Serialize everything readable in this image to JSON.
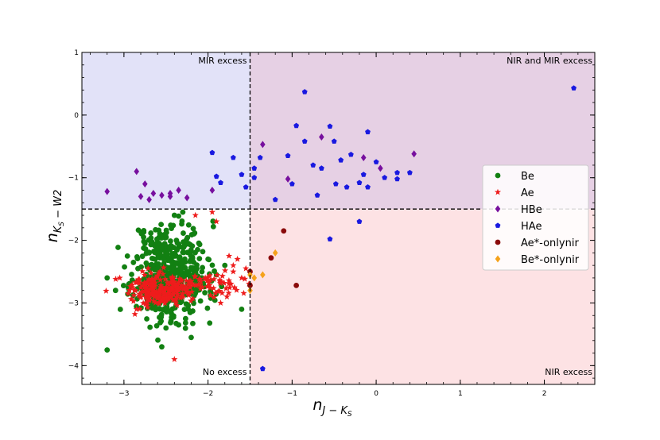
{
  "chart_data": {
    "type": "scatter",
    "xlabel_main": "n",
    "xlabel_sub": "J − K",
    "xlabel_subsub": "S",
    "ylabel_main": "n",
    "ylabel_sub": "K",
    "ylabel_subsub": "S",
    "ylabel_tail": " − W2",
    "xlim": [
      -3.5,
      2.6
    ],
    "ylim": [
      -4.3,
      1.0
    ],
    "xticks": [
      -3,
      -2,
      -1,
      0,
      1,
      2
    ],
    "yticks": [
      1,
      0,
      -1,
      -2,
      -3,
      -4
    ],
    "thresholds": {
      "x": -1.5,
      "y": -1.5
    },
    "regions": [
      {
        "name": "mir",
        "label": "MIR excess",
        "color": "#e2e2f8"
      },
      {
        "name": "nirmir",
        "label": "NIR and MIR excess",
        "color": "#e6d0e4"
      },
      {
        "name": "noexcess",
        "label": "No excess",
        "color": "#ffffff"
      },
      {
        "name": "nir",
        "label": "NIR excess",
        "color": "#fde2e4"
      }
    ],
    "series": [
      {
        "name": "Be",
        "color": "#128012",
        "marker": "circle",
        "clusters": [
          {
            "cx": -2.45,
            "cy": -2.45,
            "sx": 0.22,
            "sy": 0.38,
            "n": 420,
            "seed": 11
          },
          {
            "cx": -2.5,
            "cy": -2.85,
            "sx": 0.22,
            "sy": 0.18,
            "n": 120,
            "seed": 29
          }
        ],
        "points": [
          [
            -3.2,
            -3.75
          ],
          [
            -2.55,
            -3.7
          ],
          [
            -2.2,
            -3.55
          ],
          [
            -2.5,
            -3.4
          ],
          [
            -3.2,
            -2.6
          ],
          [
            -3.1,
            -2.8
          ],
          [
            -2.35,
            -3.35
          ],
          [
            -2.3,
            -1.55
          ],
          [
            -2.4,
            -1.6
          ],
          [
            -1.6,
            -3.1
          ],
          [
            -1.9,
            -2.55
          ],
          [
            -1.8,
            -2.4
          ],
          [
            -2.7,
            -2.2
          ],
          [
            -2.75,
            -2.05
          ],
          [
            -2.0,
            -2.3
          ]
        ]
      },
      {
        "name": "Ae",
        "color": "#ee1c1c",
        "marker": "star",
        "clusters": [
          {
            "cx": -2.55,
            "cy": -2.8,
            "sx": 0.2,
            "sy": 0.12,
            "n": 220,
            "seed": 47
          },
          {
            "cx": -2.0,
            "cy": -2.7,
            "sx": 0.3,
            "sy": 0.1,
            "n": 70,
            "seed": 53
          }
        ],
        "points": [
          [
            -2.4,
            -3.9
          ],
          [
            -2.15,
            -1.6
          ],
          [
            -1.9,
            -1.7
          ],
          [
            -1.95,
            -1.55
          ],
          [
            -1.75,
            -2.25
          ],
          [
            -1.7,
            -2.4
          ],
          [
            -1.7,
            -2.5
          ],
          [
            -3.05,
            -2.6
          ],
          [
            -2.95,
            -2.85
          ],
          [
            -2.85,
            -3.1
          ],
          [
            -1.85,
            -3.0
          ],
          [
            -1.65,
            -2.3
          ],
          [
            -1.55,
            -2.45
          ],
          [
            -1.6,
            -2.6
          ]
        ]
      },
      {
        "name": "HBe",
        "color": "#770f9e",
        "marker": "diamond",
        "points": [
          [
            -3.2,
            -1.22
          ],
          [
            -2.85,
            -0.9
          ],
          [
            -2.75,
            -1.1
          ],
          [
            -2.8,
            -1.3
          ],
          [
            -2.65,
            -1.25
          ],
          [
            -2.7,
            -1.35
          ],
          [
            -2.55,
            -1.28
          ],
          [
            -2.45,
            -1.3
          ],
          [
            -2.45,
            -1.25
          ],
          [
            -2.35,
            -1.2
          ],
          [
            -2.25,
            -1.32
          ],
          [
            -1.95,
            -1.2
          ],
          [
            -1.35,
            -0.47
          ],
          [
            -1.05,
            -1.02
          ],
          [
            -0.65,
            -0.35
          ],
          [
            -0.15,
            -0.68
          ],
          [
            0.05,
            -0.85
          ],
          [
            0.45,
            -0.62
          ]
        ]
      },
      {
        "name": "HAe",
        "color": "#1919e0",
        "marker": "pentagon",
        "points": [
          [
            -1.95,
            -0.6
          ],
          [
            -1.9,
            -0.98
          ],
          [
            -1.85,
            -1.08
          ],
          [
            -1.7,
            -0.68
          ],
          [
            -1.6,
            -0.95
          ],
          [
            -1.55,
            -1.15
          ],
          [
            -1.45,
            -0.85
          ],
          [
            -1.45,
            -1.0
          ],
          [
            -1.38,
            -0.68
          ],
          [
            -1.2,
            -1.35
          ],
          [
            -1.05,
            -0.65
          ],
          [
            -1.0,
            -1.1
          ],
          [
            -0.95,
            -0.17
          ],
          [
            -0.85,
            -0.42
          ],
          [
            -0.75,
            -0.8
          ],
          [
            -0.7,
            -1.28
          ],
          [
            -0.65,
            -0.85
          ],
          [
            -0.55,
            -0.18
          ],
          [
            -0.5,
            -0.42
          ],
          [
            -0.48,
            -1.1
          ],
          [
            -0.42,
            -0.72
          ],
          [
            -0.35,
            -1.15
          ],
          [
            -0.3,
            -0.63
          ],
          [
            -0.2,
            -1.08
          ],
          [
            -0.15,
            -0.95
          ],
          [
            -0.1,
            -0.27
          ],
          [
            -0.1,
            -1.15
          ],
          [
            0.0,
            -0.75
          ],
          [
            0.1,
            -1.0
          ],
          [
            0.25,
            -0.92
          ],
          [
            0.25,
            -1.02
          ],
          [
            0.4,
            -0.92
          ],
          [
            -0.85,
            0.37
          ],
          [
            -0.55,
            -1.98
          ],
          [
            -0.2,
            -1.7
          ],
          [
            -1.35,
            -4.05
          ],
          [
            2.35,
            0.43
          ]
        ]
      },
      {
        "name": "Ae*-onlynir",
        "color": "#8a0a0a",
        "marker": "circle",
        "points": [
          [
            -1.5,
            -2.5
          ],
          [
            -1.5,
            -2.72
          ],
          [
            -1.25,
            -2.28
          ],
          [
            -1.1,
            -1.85
          ],
          [
            -0.95,
            -2.72
          ]
        ]
      },
      {
        "name": "Be*-onlynir",
        "color": "#f5a21a",
        "marker": "diamond",
        "points": [
          [
            -1.5,
            -2.55
          ],
          [
            -1.5,
            -2.8
          ],
          [
            -1.35,
            -2.55
          ],
          [
            -1.2,
            -2.2
          ],
          [
            -1.45,
            -2.6
          ]
        ]
      }
    ],
    "legend": [
      "Be",
      "Ae",
      "HBe",
      "HAe",
      "Ae*-onlynir",
      "Be*-onlynir"
    ],
    "legend_position": "center-right"
  }
}
